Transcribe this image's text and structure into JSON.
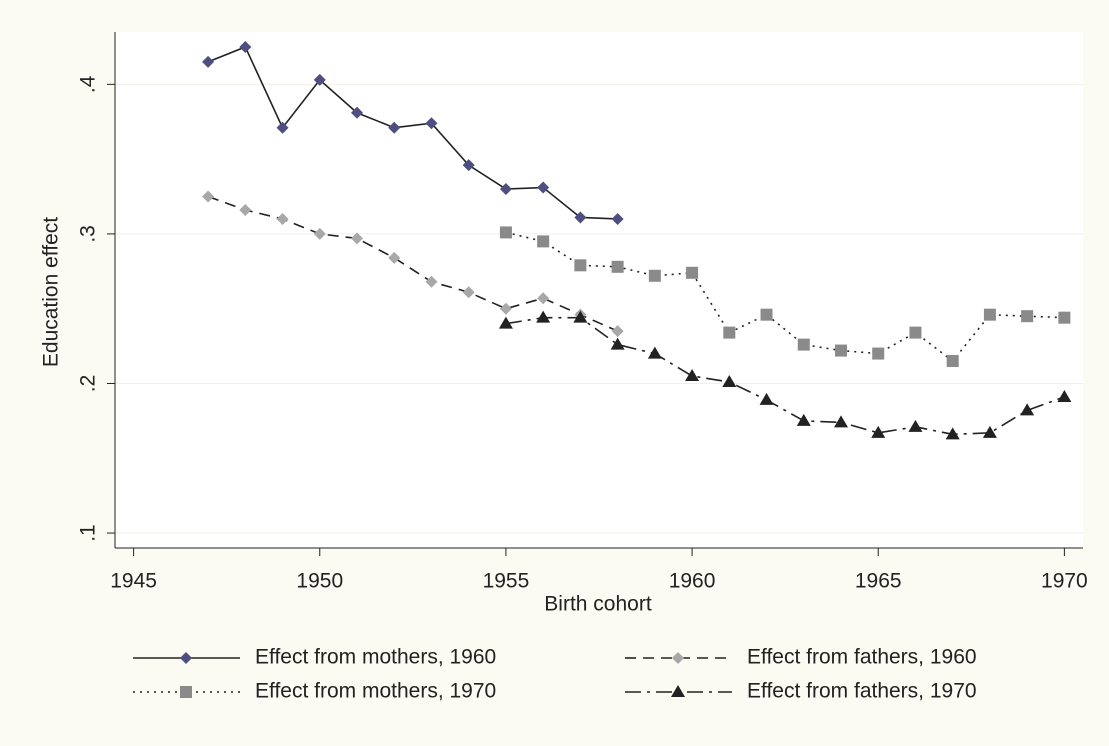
{
  "chart_data": {
    "type": "line",
    "x_label": "Birth cohort",
    "y_label": "Education effect",
    "x": [
      1947,
      1948,
      1949,
      1950,
      1951,
      1952,
      1953,
      1954,
      1955,
      1956,
      1957,
      1958,
      1959,
      1960,
      1961,
      1962,
      1963,
      1964,
      1965,
      1966,
      1967,
      1968,
      1969,
      1970
    ],
    "series": [
      {
        "name": "Effect from mothers, 1960",
        "color": "#4e4e80",
        "marker": "diamond",
        "dash": "solid",
        "values": [
          0.415,
          0.425,
          0.371,
          0.403,
          0.381,
          0.371,
          0.374,
          0.346,
          0.33,
          0.331,
          0.311,
          0.31,
          null,
          null,
          null,
          null,
          null,
          null,
          null,
          null,
          null,
          null,
          null,
          null
        ]
      },
      {
        "name": "Effect from fathers, 1960",
        "color": "#a8a8a8",
        "marker": "diamond",
        "dash": "dash",
        "values": [
          0.325,
          0.316,
          0.31,
          0.3,
          0.297,
          0.284,
          0.268,
          0.261,
          0.25,
          0.257,
          0.246,
          0.235,
          null,
          null,
          null,
          null,
          null,
          null,
          null,
          null,
          null,
          null,
          null,
          null
        ]
      },
      {
        "name": "Effect from mothers, 1970",
        "color": "#8a8a8a",
        "marker": "square",
        "dash": "dot",
        "values": [
          null,
          null,
          null,
          null,
          null,
          null,
          null,
          null,
          0.301,
          0.295,
          0.279,
          0.278,
          0.272,
          0.274,
          0.234,
          0.246,
          0.226,
          0.222,
          0.22,
          0.234,
          0.215,
          0.246,
          0.245,
          0.244
        ]
      },
      {
        "name": "Effect from fathers, 1970",
        "color": "#222222",
        "marker": "triangle",
        "dash": "dashdot",
        "values": [
          null,
          null,
          null,
          null,
          null,
          null,
          null,
          null,
          0.24,
          0.244,
          0.244,
          0.226,
          0.22,
          0.205,
          0.201,
          0.189,
          0.175,
          0.174,
          0.167,
          0.171,
          0.166,
          0.167,
          0.182,
          0.191
        ]
      }
    ],
    "xlim": [
      1944.5,
      1970.5
    ],
    "xticks": [
      1945,
      1950,
      1955,
      1960,
      1965,
      1970
    ],
    "ylim": [
      0.09,
      0.435
    ],
    "yticks": [
      {
        "value": 0.1,
        "label": ".1"
      },
      {
        "value": 0.2,
        "label": ".2"
      },
      {
        "value": 0.3,
        "label": ".3"
      },
      {
        "value": 0.4,
        "label": ".4"
      }
    ],
    "grid": true,
    "legend": "bottom"
  }
}
